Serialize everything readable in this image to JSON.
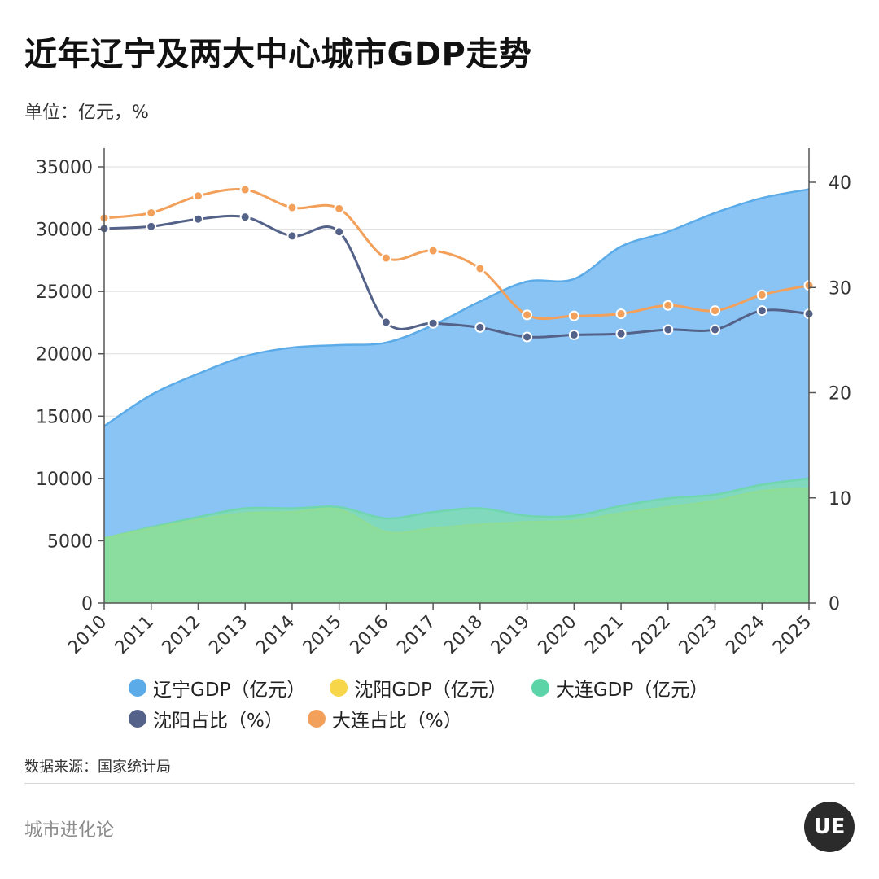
{
  "title": "近年辽宁及两大中心城市GDP走势",
  "unit_note": "单位：亿元，%",
  "source": "数据来源：国家统计局",
  "brand": "城市进化论",
  "logo_text": "UE",
  "chart_data": {
    "type": "area",
    "x": [
      "2010",
      "2011",
      "2012",
      "2013",
      "2014",
      "2015",
      "2016",
      "2017",
      "2018",
      "2019",
      "2020",
      "2021",
      "2022",
      "2023",
      "2024",
      "2025"
    ],
    "left_axis": {
      "ylim": [
        0,
        35000
      ],
      "ticks": [
        "0",
        "5000",
        "10000",
        "15000",
        "20000",
        "25000",
        "30000",
        "35000"
      ]
    },
    "right_axis": {
      "ylim": [
        0,
        43
      ],
      "ticks": [
        "0",
        "10",
        "20",
        "30",
        "40"
      ]
    },
    "grid": true,
    "legend_position": "bottom",
    "series": [
      {
        "name": "辽宁GDP（亿元）",
        "type": "area",
        "axis": "left",
        "color": "#5AABE8",
        "values": [
          14200,
          16700,
          18400,
          19800,
          20500,
          20700,
          20900,
          22300,
          24200,
          25800,
          26000,
          28600,
          29800,
          31300,
          32500,
          33200
        ]
      },
      {
        "name": "沈阳GDP（亿元）",
        "type": "area",
        "axis": "left",
        "color": "#F7D64A",
        "values": [
          5200,
          6000,
          6700,
          7200,
          7300,
          7500,
          5700,
          6000,
          6300,
          6500,
          6600,
          7200,
          7700,
          8200,
          9000,
          9200
        ]
      },
      {
        "name": "大连GDP（亿元）",
        "type": "area",
        "axis": "left",
        "color": "#5DD4A8",
        "values": [
          5200,
          6100,
          6900,
          7600,
          7600,
          7700,
          6800,
          7300,
          7600,
          7000,
          7000,
          7800,
          8400,
          8700,
          9500,
          10000
        ]
      },
      {
        "name": "沈阳占比（%）",
        "type": "line",
        "axis": "right",
        "color": "#546289",
        "values": [
          35.6,
          35.8,
          36.5,
          36.7,
          34.9,
          35.3,
          26.7,
          26.6,
          26.2,
          25.3,
          25.5,
          25.6,
          26.0,
          26.0,
          27.8,
          27.5
        ]
      },
      {
        "name": "大连占比（%）",
        "type": "line",
        "axis": "right",
        "color": "#F2A05A",
        "values": [
          36.6,
          37.1,
          38.7,
          39.3,
          37.6,
          37.5,
          32.8,
          33.5,
          31.8,
          27.4,
          27.3,
          27.5,
          28.3,
          27.8,
          29.3,
          30.2
        ]
      }
    ]
  }
}
